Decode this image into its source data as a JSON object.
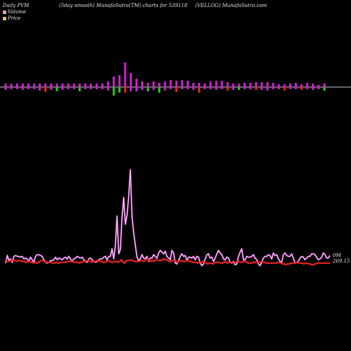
{
  "header": {
    "left": "Daily PVM",
    "center": "(5day smooth) MunafaSutra(TM) charts for 539118",
    "right": "(VELLOG) MunafaSutra.com"
  },
  "legend": [
    {
      "label": "Volume",
      "color": "#e8a0a0"
    },
    {
      "label": "Price",
      "color": "#e8b070"
    }
  ],
  "chart_data": [
    {
      "type": "bar",
      "name": "volume-bars",
      "bars": [
        {
          "up": 5,
          "down": 4,
          "color": "magenta"
        },
        {
          "up": 5,
          "down": 3,
          "color": "magenta"
        },
        {
          "up": 5,
          "down": 3,
          "color": "magenta"
        },
        {
          "up": 5,
          "down": 4,
          "color": "magenta"
        },
        {
          "up": 5,
          "down": 3,
          "color": "magenta"
        },
        {
          "up": 5,
          "down": 3,
          "color": "magenta"
        },
        {
          "up": 5,
          "down": 5,
          "color": "magenta"
        },
        {
          "up": 5,
          "down": 7,
          "color": "red"
        },
        {
          "up": 5,
          "down": 4,
          "color": "magenta"
        },
        {
          "up": 5,
          "down": 6,
          "color": "green"
        },
        {
          "up": 5,
          "down": 4,
          "color": "magenta"
        },
        {
          "up": 5,
          "down": 3,
          "color": "magenta"
        },
        {
          "up": 5,
          "down": 3,
          "color": "magenta"
        },
        {
          "up": 5,
          "down": 6,
          "color": "green"
        },
        {
          "up": 5,
          "down": 3,
          "color": "magenta"
        },
        {
          "up": 5,
          "down": 3,
          "color": "magenta"
        },
        {
          "up": 5,
          "down": 3,
          "color": "magenta"
        },
        {
          "up": 5,
          "down": 3,
          "color": "magenta"
        },
        {
          "up": 8,
          "down": 5,
          "color": "magenta"
        },
        {
          "up": 15,
          "down": 12,
          "color": "green"
        },
        {
          "up": 17,
          "down": 8,
          "color": "green"
        },
        {
          "up": 35,
          "down": 8,
          "color": "red"
        },
        {
          "up": 20,
          "down": 6,
          "color": "magenta"
        },
        {
          "up": 12,
          "down": 6,
          "color": "magenta"
        },
        {
          "up": 8,
          "down": 4,
          "color": "magenta"
        },
        {
          "up": 6,
          "down": 6,
          "color": "green"
        },
        {
          "up": 8,
          "down": 4,
          "color": "magenta"
        },
        {
          "up": 6,
          "down": 8,
          "color": "green"
        },
        {
          "up": 8,
          "down": 5,
          "color": "magenta"
        },
        {
          "up": 10,
          "down": 3,
          "color": "magenta"
        },
        {
          "up": 9,
          "down": 7,
          "color": "red"
        },
        {
          "up": 10,
          "down": 3,
          "color": "magenta"
        },
        {
          "up": 9,
          "down": 3,
          "color": "magenta"
        },
        {
          "up": 6,
          "down": 4,
          "color": "magenta"
        },
        {
          "up": 6,
          "down": 8,
          "color": "red"
        },
        {
          "up": 5,
          "down": 3,
          "color": "magenta"
        },
        {
          "up": 8,
          "down": 3,
          "color": "magenta"
        },
        {
          "up": 9,
          "down": 4,
          "color": "magenta"
        },
        {
          "up": 9,
          "down": 3,
          "color": "magenta"
        },
        {
          "up": 7,
          "down": 5,
          "color": "red"
        },
        {
          "up": 5,
          "down": 4,
          "color": "magenta"
        },
        {
          "up": 5,
          "down": 4,
          "color": "green"
        },
        {
          "up": 6,
          "down": 3,
          "color": "magenta"
        },
        {
          "up": 6,
          "down": 3,
          "color": "magenta"
        },
        {
          "up": 7,
          "down": 4,
          "color": "red"
        },
        {
          "up": 7,
          "down": 4,
          "color": "magenta"
        },
        {
          "up": 7,
          "down": 5,
          "color": "magenta"
        },
        {
          "up": 6,
          "down": 3,
          "color": "magenta"
        },
        {
          "up": 4,
          "down": 3,
          "color": "magenta"
        },
        {
          "up": 4,
          "down": 5,
          "color": "red"
        },
        {
          "up": 5,
          "down": 3,
          "color": "magenta"
        },
        {
          "up": 6,
          "down": 3,
          "color": "magenta"
        },
        {
          "up": 4,
          "down": 4,
          "color": "red"
        },
        {
          "up": 6,
          "down": 3,
          "color": "magenta"
        },
        {
          "up": 5,
          "down": 4,
          "color": "magenta"
        },
        {
          "up": 3,
          "down": 3,
          "color": "magenta"
        },
        {
          "up": 5,
          "down": 5,
          "color": "green"
        }
      ]
    },
    {
      "type": "line",
      "name": "pvm-lines",
      "series": [
        {
          "name": "Volume",
          "color": "#cc44cc",
          "end_label": "0M",
          "values": [
            96,
            105,
            99,
            101,
            97,
            104,
            105,
            104,
            104,
            103,
            104,
            101,
            102,
            101,
            98,
            103,
            100,
            97,
            104,
            106,
            106,
            105,
            104,
            100,
            97,
            96,
            97,
            99,
            99,
            100,
            103,
            100,
            102,
            101,
            100,
            102,
            103,
            101,
            104,
            101,
            98,
            101,
            102,
            104,
            103,
            102,
            103,
            100,
            98,
            97,
            101,
            102,
            100,
            98,
            97,
            98,
            100,
            101,
            101,
            103,
            104,
            100,
            104,
            104,
            113,
            101,
            117,
            152,
            107,
            112,
            150,
            174,
            142,
            153,
            175,
            207,
            151,
            132,
            117,
            103,
            99,
            101,
            106,
            102,
            101,
            104,
            98,
            102,
            102,
            106,
            104,
            102,
            108,
            111,
            109,
            107,
            110,
            104,
            102,
            100,
            111,
            108,
            96,
            95,
            99,
            104,
            107,
            104,
            105,
            99,
            103,
            103,
            102,
            104,
            100,
            104,
            103,
            96,
            93,
            95,
            101,
            106,
            107,
            102,
            103,
            98,
            102,
            107,
            111,
            108,
            106,
            101,
            100,
            103,
            102,
            97,
            96,
            98,
            94,
            95,
            104,
            109,
            113,
            100,
            100,
            104,
            103,
            103,
            104,
            106,
            102,
            100,
            95,
            93,
            97,
            102,
            104,
            104,
            106,
            105,
            101,
            108,
            105,
            106,
            101,
            98,
            97,
            106,
            108,
            105,
            104,
            104,
            107,
            102,
            96,
            97,
            98,
            102,
            104,
            103,
            100,
            102,
            104,
            104,
            107,
            107,
            106,
            103,
            100,
            101,
            103,
            108,
            106,
            102,
            102,
            105
          ]
        },
        {
          "name": "Price",
          "color": "#ee2222",
          "end_label": "269.15",
          "values": [
            100,
            98,
            98,
            99,
            99,
            99,
            99,
            98,
            99,
            99,
            98,
            98,
            97,
            97,
            98,
            98,
            97,
            96,
            97,
            96,
            97,
            98,
            99,
            99,
            98,
            97,
            97,
            97,
            97,
            96,
            96,
            97,
            96,
            96,
            97,
            97,
            97,
            97,
            98,
            98,
            98,
            98,
            97,
            97,
            97,
            96,
            97,
            97,
            98,
            98,
            99,
            99,
            98,
            97,
            98,
            98,
            99,
            99,
            98,
            98,
            97,
            97,
            98,
            99,
            98,
            97,
            97,
            98,
            98,
            97,
            98,
            100,
            97,
            96,
            99,
            99,
            99,
            100,
            99,
            98,
            98,
            98,
            98,
            99,
            99,
            98,
            100,
            101,
            99,
            98,
            99,
            98,
            100,
            100,
            99,
            99,
            100,
            101,
            100,
            100,
            98,
            98,
            99,
            99,
            99,
            97,
            98,
            99,
            99,
            98,
            98,
            99,
            99,
            98,
            98,
            97,
            97,
            97,
            96,
            97,
            97,
            98,
            97,
            96,
            95,
            96,
            96,
            95,
            96,
            97,
            97,
            97,
            96,
            96,
            97,
            98,
            96,
            97,
            97,
            97,
            96,
            97,
            98,
            98,
            97,
            97,
            98,
            98,
            97,
            96,
            96,
            96,
            97,
            97,
            97,
            97,
            97,
            98,
            97,
            97,
            96,
            96,
            96,
            96,
            96,
            96,
            96,
            97,
            97,
            96,
            95,
            95,
            94,
            95,
            95,
            96,
            96,
            96,
            97,
            97,
            96,
            96,
            96,
            95,
            96,
            96,
            95,
            95,
            94,
            94,
            95,
            96,
            96,
            96,
            96,
            96,
            96,
            96,
            96,
            96
          ]
        }
      ]
    }
  ]
}
